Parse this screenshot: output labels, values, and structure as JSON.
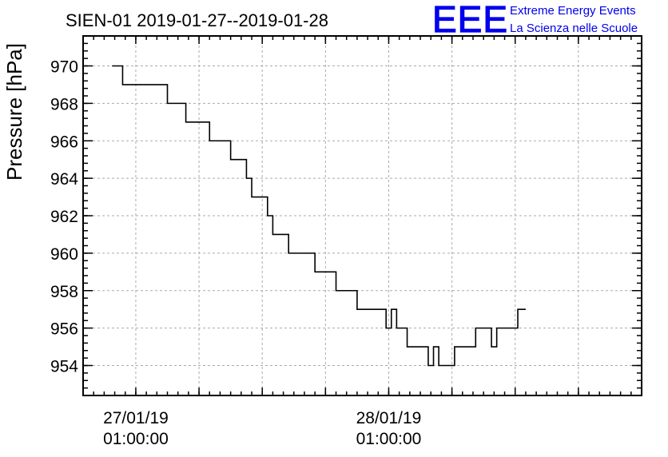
{
  "chart_data": {
    "type": "line",
    "title": "SIEN-01 2019-01-27--2019-01-28",
    "xlabel": "",
    "ylabel": "Pressure [hPa]",
    "ylim": [
      952.4,
      971.6
    ],
    "yticks": [
      "954",
      "956",
      "958",
      "960",
      "962",
      "964",
      "966",
      "968",
      "970"
    ],
    "xlim": [
      "2019-01-26 20:00:00",
      "2019-01-29 01:00:00"
    ],
    "xticks": [
      {
        "x": "2019-01-27 01:00:00",
        "line1": "27/01/19",
        "line2": "01:00:00"
      },
      {
        "x": "2019-01-28 01:00:00",
        "line1": "28/01/19",
        "line2": "01:00:00"
      }
    ],
    "grid": true,
    "series": [
      {
        "step": "post",
        "color": "#000000",
        "points": [
          {
            "x": "2019-01-26 22:45:00",
            "y": 970
          },
          {
            "x": "2019-01-26 23:45:00",
            "y": 969
          },
          {
            "x": "2019-01-27 04:00:00",
            "y": 968
          },
          {
            "x": "2019-01-27 05:45:00",
            "y": 967
          },
          {
            "x": "2019-01-27 08:00:00",
            "y": 966
          },
          {
            "x": "2019-01-27 10:00:00",
            "y": 965
          },
          {
            "x": "2019-01-27 11:30:00",
            "y": 964
          },
          {
            "x": "2019-01-27 12:00:00",
            "y": 963
          },
          {
            "x": "2019-01-27 13:30:00",
            "y": 962
          },
          {
            "x": "2019-01-27 14:00:00",
            "y": 961
          },
          {
            "x": "2019-01-27 15:30:00",
            "y": 960
          },
          {
            "x": "2019-01-27 18:00:00",
            "y": 959
          },
          {
            "x": "2019-01-27 20:00:00",
            "y": 958
          },
          {
            "x": "2019-01-27 22:00:00",
            "y": 957
          },
          {
            "x": "2019-01-28 00:45:00",
            "y": 956
          },
          {
            "x": "2019-01-28 01:15:00",
            "y": 957
          },
          {
            "x": "2019-01-28 01:45:00",
            "y": 956
          },
          {
            "x": "2019-01-28 02:45:00",
            "y": 955
          },
          {
            "x": "2019-01-28 04:45:00",
            "y": 954
          },
          {
            "x": "2019-01-28 05:15:00",
            "y": 955
          },
          {
            "x": "2019-01-28 05:45:00",
            "y": 954
          },
          {
            "x": "2019-01-28 07:15:00",
            "y": 955
          },
          {
            "x": "2019-01-28 09:15:00",
            "y": 956
          },
          {
            "x": "2019-01-28 10:45:00",
            "y": 955
          },
          {
            "x": "2019-01-28 11:15:00",
            "y": 956
          },
          {
            "x": "2019-01-28 13:15:00",
            "y": 957
          },
          {
            "x": "2019-01-28 14:00:00",
            "y": 957
          }
        ]
      }
    ]
  },
  "logo": {
    "mark": "EEE",
    "line1": "Extreme Energy Events",
    "line2": "La Scienza nelle Scuole",
    "color": "#0000ee"
  }
}
